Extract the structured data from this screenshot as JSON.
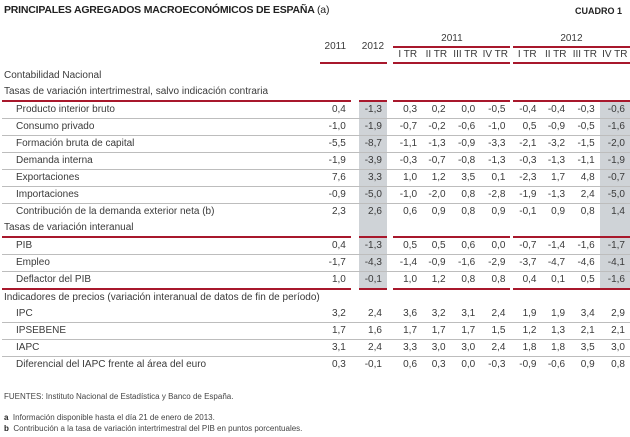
{
  "title": "PRINCIPALES AGREGADOS MACROECONÓMICOS DE ESPAÑA",
  "title_note": "(a)",
  "cuadro": "CUADRO 1",
  "colors": {
    "accent": "#a8182c",
    "shade": "#cfd3d7"
  },
  "header": {
    "annual": [
      "2011",
      "2012"
    ],
    "groups": [
      "2011",
      "2012"
    ],
    "quarters": [
      "I TR",
      "II TR",
      "III TR",
      "IV TR",
      "I TR",
      "II TR",
      "III TR",
      "IV TR"
    ]
  },
  "sections": [
    {
      "label": "Contabilidad Nacional",
      "rows": []
    },
    {
      "label": "Tasas de variación intertrimestral, salvo indicación contraria",
      "red": true,
      "rows": [
        {
          "label": "Producto interior bruto",
          "values": [
            "0,4",
            "-1,3",
            "0,3",
            "0,2",
            "0,0",
            "-0,5",
            "-0,4",
            "-0,4",
            "-0,3",
            "-0,6"
          ]
        },
        {
          "label": "Consumo privado",
          "values": [
            "-1,0",
            "-1,9",
            "-0,7",
            "-0,2",
            "-0,6",
            "-1,0",
            "0,5",
            "-0,9",
            "-0,5",
            "-1,6"
          ]
        },
        {
          "label": "Formación bruta de capital",
          "values": [
            "-5,5",
            "-8,7",
            "-1,1",
            "-1,3",
            "-0,9",
            "-3,3",
            "-2,1",
            "-3,2",
            "-1,5",
            "-2,0"
          ]
        },
        {
          "label": "Demanda interna",
          "values": [
            "-1,9",
            "-3,9",
            "-0,3",
            "-0,7",
            "-0,8",
            "-1,3",
            "-0,3",
            "-1,3",
            "-1,1",
            "-1,9"
          ]
        },
        {
          "label": "Exportaciones",
          "values": [
            "7,6",
            "3,3",
            "1,0",
            "1,2",
            "3,5",
            "0,1",
            "-2,3",
            "1,7",
            "4,8",
            "-0,7"
          ]
        },
        {
          "label": "Importaciones",
          "values": [
            "-0,9",
            "-5,0",
            "-1,0",
            "-2,0",
            "0,8",
            "-2,8",
            "-1,9",
            "-1,3",
            "2,4",
            "-5,0"
          ]
        },
        {
          "label": "Contribución de la demanda exterior neta (b)",
          "values": [
            "2,3",
            "2,6",
            "0,6",
            "0,9",
            "0,8",
            "0,9",
            "-0,1",
            "0,9",
            "0,8",
            "1,4"
          ]
        }
      ]
    },
    {
      "label": "Tasas de variación interanual",
      "red": true,
      "shaded": true,
      "rows": [
        {
          "label": "PIB",
          "values": [
            "0,4",
            "-1,3",
            "0,5",
            "0,5",
            "0,6",
            "0,0",
            "-0,7",
            "-1,4",
            "-1,6",
            "-1,7"
          ]
        },
        {
          "label": "Empleo",
          "values": [
            "-1,7",
            "-4,3",
            "-1,4",
            "-0,9",
            "-1,6",
            "-2,9",
            "-3,7",
            "-4,7",
            "-4,6",
            "-4,1"
          ]
        },
        {
          "label": "Deflactor del PIB",
          "values": [
            "1,0",
            "-0,1",
            "1,0",
            "1,2",
            "0,8",
            "0,8",
            "0,4",
            "0,1",
            "0,5",
            "-1,6"
          ],
          "red": true
        }
      ]
    },
    {
      "label": "Indicadores de precios (variación interanual de datos de fin de período)",
      "rows": [
        {
          "label": "IPC",
          "values": [
            "3,2",
            "2,4",
            "3,6",
            "3,2",
            "3,1",
            "2,4",
            "1,9",
            "1,9",
            "3,4",
            "2,9"
          ]
        },
        {
          "label": "IPSEBENE",
          "values": [
            "1,7",
            "1,6",
            "1,7",
            "1,7",
            "1,7",
            "1,5",
            "1,2",
            "1,3",
            "2,1",
            "2,1"
          ]
        },
        {
          "label": "IAPC",
          "values": [
            "3,1",
            "2,4",
            "3,3",
            "3,0",
            "3,0",
            "2,4",
            "1,8",
            "1,8",
            "3,5",
            "3,0"
          ]
        },
        {
          "label": "Diferencial del IAPC frente al área del euro",
          "values": [
            "0,3",
            "-0,1",
            "0,6",
            "0,3",
            "0,0",
            "-0,3",
            "-0,9",
            "-0,6",
            "0,9",
            "0,8"
          ]
        }
      ]
    }
  ],
  "footer": {
    "sources": "FUENTES: Instituto Nacional de Estadística y Banco de España.",
    "notes": [
      {
        "mark": "a",
        "text": "Información disponible hasta el día 21 de enero de 2013."
      },
      {
        "mark": "b",
        "text": "Contribución a la tasa de variación intertrimestral del PIB en puntos porcentuales."
      }
    ]
  }
}
